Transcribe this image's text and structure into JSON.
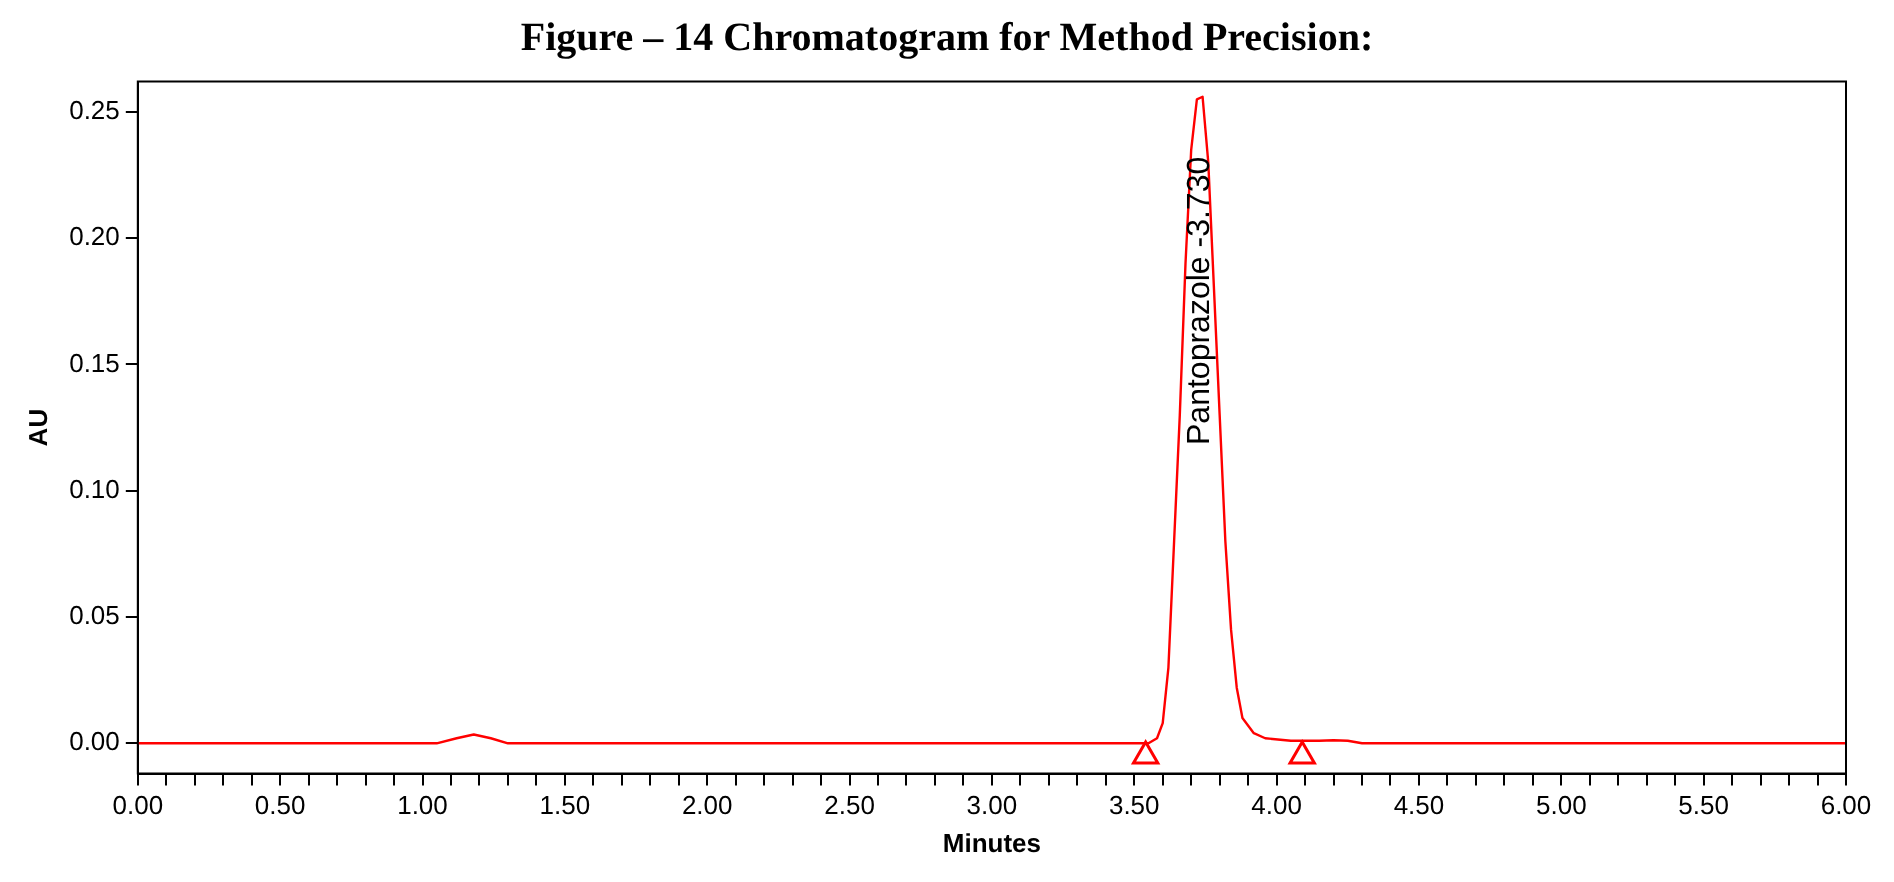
{
  "chart_data": {
    "type": "line",
    "title": "Figure – 14 Chromatogram for Method Precision:",
    "xlabel": "Minutes",
    "ylabel": "AU",
    "series": [
      {
        "color": "#ff0000",
        "x": [
          0,
          0.5,
          1.0,
          1.05,
          1.12,
          1.18,
          1.24,
          1.3,
          2.0,
          3.0,
          3.55,
          3.58,
          3.6,
          3.62,
          3.64,
          3.66,
          3.68,
          3.7,
          3.72,
          3.74,
          3.76,
          3.78,
          3.8,
          3.82,
          3.84,
          3.86,
          3.88,
          3.92,
          3.96,
          4.05,
          4.15,
          4.2,
          4.25,
          4.3,
          5.0,
          6.0
        ],
        "values": [
          0,
          0,
          0,
          0,
          0.002,
          0.0035,
          0.002,
          0,
          0,
          0,
          0,
          0.002,
          0.008,
          0.03,
          0.08,
          0.13,
          0.19,
          0.235,
          0.255,
          0.256,
          0.23,
          0.18,
          0.13,
          0.08,
          0.045,
          0.022,
          0.01,
          0.004,
          0.002,
          0.001,
          0.001,
          0.0012,
          0.001,
          0,
          0,
          0
        ]
      },
      {
        "type": "scatter",
        "color": "#ff0000",
        "marker": "triangle",
        "x": [
          3.54,
          4.09
        ],
        "values": [
          -0.005,
          -0.005
        ]
      }
    ],
    "annotations": [
      {
        "text": "Pantoprazole -3.730",
        "x": 3.73,
        "y": 0.256
      }
    ],
    "xlim": [
      0,
      6
    ],
    "ylim": [
      -0.012,
      0.262
    ],
    "xticks": [
      {
        "value": 0,
        "label": "0.00"
      },
      {
        "value": 0.1,
        "label": null
      },
      {
        "value": 0.2,
        "label": null
      },
      {
        "value": 0.3,
        "label": null
      },
      {
        "value": 0.4,
        "label": null
      },
      {
        "value": 0.5,
        "label": "0.50"
      },
      {
        "value": 0.6,
        "label": null
      },
      {
        "value": 0.7,
        "label": null
      },
      {
        "value": 0.8,
        "label": null
      },
      {
        "value": 0.9,
        "label": null
      },
      {
        "value": 1,
        "label": "1.00"
      },
      {
        "value": 1.1,
        "label": null
      },
      {
        "value": 1.2,
        "label": null
      },
      {
        "value": 1.3,
        "label": null
      },
      {
        "value": 1.4,
        "label": null
      },
      {
        "value": 1.5,
        "label": "1.50"
      },
      {
        "value": 1.6,
        "label": null
      },
      {
        "value": 1.7,
        "label": null
      },
      {
        "value": 1.8,
        "label": null
      },
      {
        "value": 1.9,
        "label": null
      },
      {
        "value": 2,
        "label": "2.00"
      },
      {
        "value": 2.1,
        "label": null
      },
      {
        "value": 2.2,
        "label": null
      },
      {
        "value": 2.3,
        "label": null
      },
      {
        "value": 2.4,
        "label": null
      },
      {
        "value": 2.5,
        "label": "2.50"
      },
      {
        "value": 2.6,
        "label": null
      },
      {
        "value": 2.7,
        "label": null
      },
      {
        "value": 2.8,
        "label": null
      },
      {
        "value": 2.9,
        "label": null
      },
      {
        "value": 3,
        "label": "3.00"
      },
      {
        "value": 3.1,
        "label": null
      },
      {
        "value": 3.2,
        "label": null
      },
      {
        "value": 3.3,
        "label": null
      },
      {
        "value": 3.4,
        "label": null
      },
      {
        "value": 3.5,
        "label": "3.50"
      },
      {
        "value": 3.6,
        "label": null
      },
      {
        "value": 3.7,
        "label": null
      },
      {
        "value": 3.8,
        "label": null
      },
      {
        "value": 3.9,
        "label": null
      },
      {
        "value": 4,
        "label": "4.00"
      },
      {
        "value": 4.1,
        "label": null
      },
      {
        "value": 4.2,
        "label": null
      },
      {
        "value": 4.3,
        "label": null
      },
      {
        "value": 4.4,
        "label": null
      },
      {
        "value": 4.5,
        "label": "4.50"
      },
      {
        "value": 4.6,
        "label": null
      },
      {
        "value": 4.7,
        "label": null
      },
      {
        "value": 4.8,
        "label": null
      },
      {
        "value": 4.9,
        "label": null
      },
      {
        "value": 5,
        "label": "5.00"
      },
      {
        "value": 5.1,
        "label": null
      },
      {
        "value": 5.2,
        "label": null
      },
      {
        "value": 5.3,
        "label": null
      },
      {
        "value": 5.4,
        "label": null
      },
      {
        "value": 5.5,
        "label": "5.50"
      },
      {
        "value": 5.6,
        "label": null
      },
      {
        "value": 5.7,
        "label": null
      },
      {
        "value": 5.8,
        "label": null
      },
      {
        "value": 5.9,
        "label": null
      },
      {
        "value": 6,
        "label": "6.00"
      }
    ],
    "yticks": [
      {
        "value": 0,
        "label": "0.00"
      },
      {
        "value": 0.05,
        "label": "0.05"
      },
      {
        "value": 0.1,
        "label": "0.10"
      },
      {
        "value": 0.15,
        "label": "0.15"
      },
      {
        "value": 0.2,
        "label": "0.20"
      },
      {
        "value": 0.25,
        "label": "0.25"
      }
    ],
    "grid": false,
    "legend": false,
    "marker": "none",
    "line_style": "solid"
  }
}
